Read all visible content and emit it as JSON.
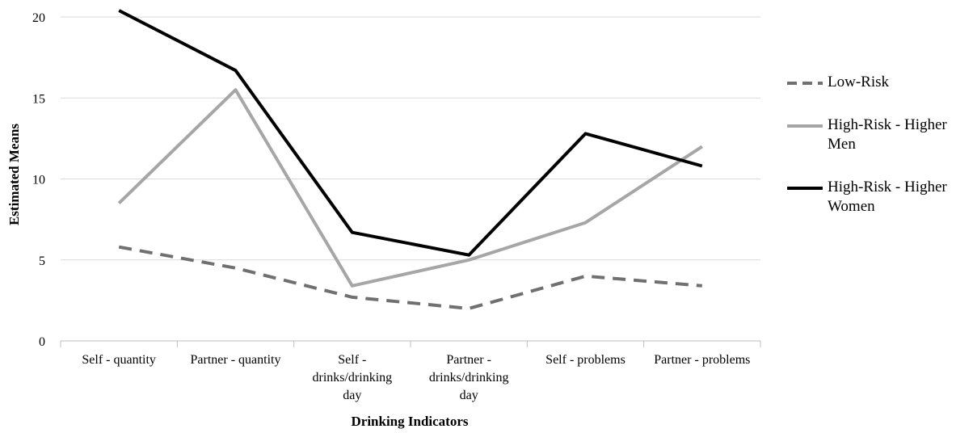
{
  "chart_data": {
    "type": "line",
    "categories": [
      [
        "Self - quantity"
      ],
      [
        "Partner - quantity"
      ],
      [
        "Self -",
        "drinks/drinking",
        "day"
      ],
      [
        "Partner -",
        "drinks/drinking",
        "day"
      ],
      [
        "Self - problems"
      ],
      [
        "Partner - problems"
      ]
    ],
    "series": [
      {
        "name": "Low-Risk",
        "values": [
          5.8,
          4.5,
          2.7,
          2.0,
          4.0,
          3.4
        ],
        "color": "#707070",
        "dash": "dashed"
      },
      {
        "name": "High-Risk - Higher Men",
        "values": [
          8.5,
          15.5,
          3.4,
          5.0,
          7.3,
          12.0
        ],
        "color": "#a6a6a6",
        "dash": "solid"
      },
      {
        "name": "High-Risk - Higher Women",
        "values": [
          20.4,
          16.7,
          6.7,
          5.3,
          12.8,
          10.8
        ],
        "color": "#000000",
        "dash": "solid"
      }
    ],
    "xlabel": "Drinking Indicators",
    "ylabel": "Estimated Means",
    "ylim": [
      0,
      20
    ],
    "yticks": [
      0,
      5,
      10,
      15,
      20
    ],
    "grid": true,
    "legend_position": "right"
  }
}
